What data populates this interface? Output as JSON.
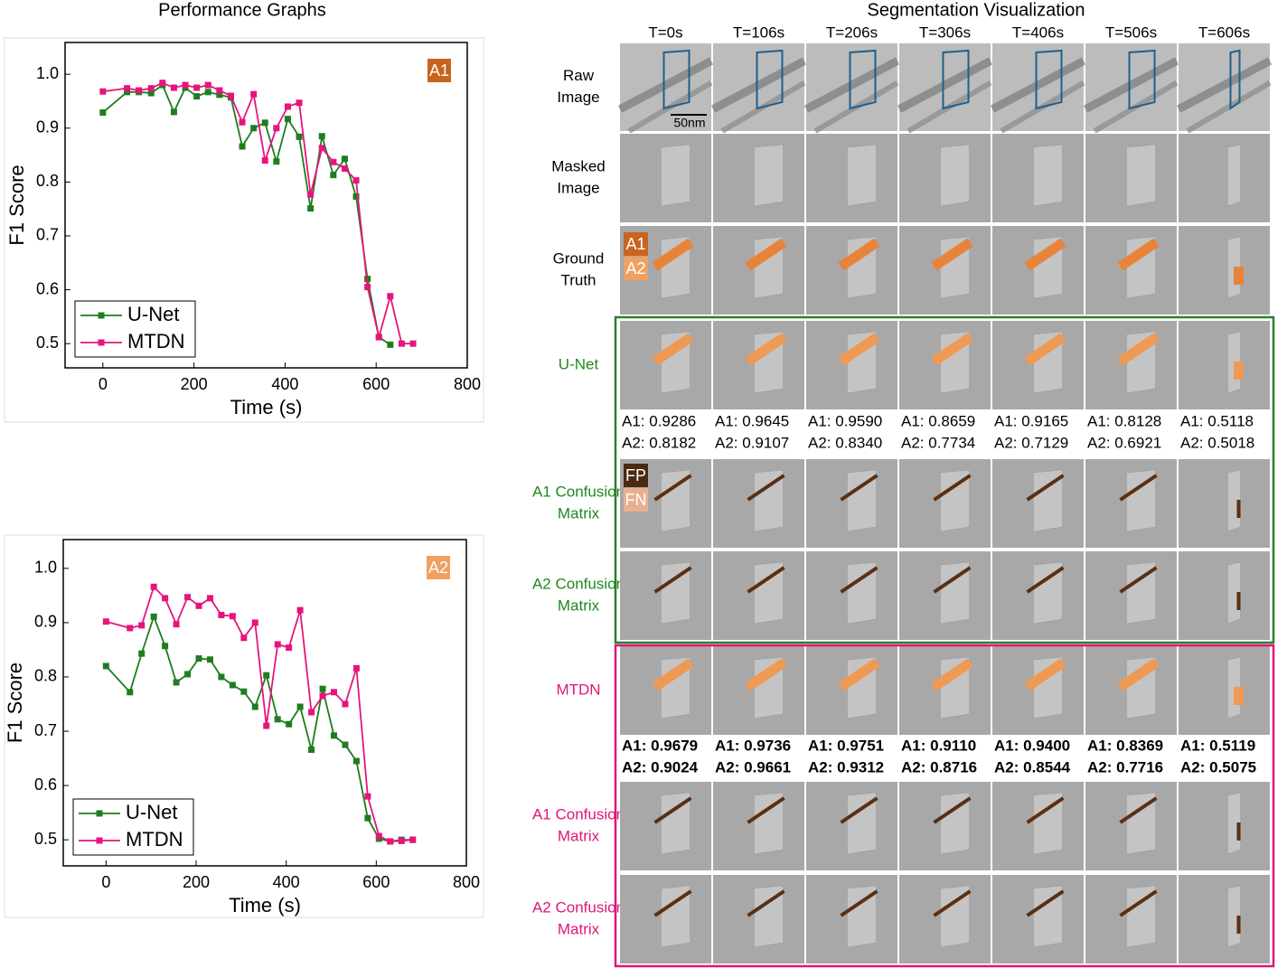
{
  "performance_title": "Performance Graphs",
  "chart_data": [
    {
      "type": "line",
      "badge": "A1",
      "badge_color": "#c8641e",
      "x_label": "Time (s)",
      "y_label": "F1 Score",
      "legend": "lower left",
      "x": [
        0,
        53,
        79,
        106,
        131,
        156,
        181,
        206,
        231,
        256,
        281,
        306,
        331,
        356,
        381,
        406,
        431,
        456,
        481,
        506,
        531,
        556,
        581,
        606,
        631,
        656,
        681
      ],
      "series": [
        {
          "name": "U-Net",
          "color": "#1e7d1e",
          "values": [
            0.929,
            0.967,
            0.967,
            0.965,
            0.98,
            0.93,
            0.975,
            0.959,
            0.967,
            0.962,
            0.957,
            0.866,
            0.9,
            0.91,
            0.838,
            0.917,
            0.884,
            0.751,
            0.885,
            0.813,
            0.843,
            0.773,
            0.62,
            0.512,
            0.498,
            null,
            null
          ]
        },
        {
          "name": "MTDN",
          "color": "#e8137c",
          "values": [
            0.968,
            0.974,
            0.97,
            0.974,
            0.984,
            0.975,
            0.98,
            0.975,
            0.98,
            0.97,
            0.96,
            0.911,
            0.963,
            0.84,
            0.9,
            0.94,
            0.947,
            0.777,
            0.863,
            0.837,
            0.825,
            0.803,
            0.605,
            0.512,
            0.588,
            0.5,
            0.5
          ]
        }
      ],
      "xlim": [
        -83,
        800
      ],
      "xticks": [
        0,
        200,
        400,
        600,
        800
      ],
      "ylim": [
        0.455,
        1.059
      ],
      "yticks": [
        0.5,
        0.6,
        0.7,
        0.8,
        0.9,
        {
          "value": 1,
          "label": "1.0"
        }
      ]
    },
    {
      "type": "line",
      "badge": "A2",
      "badge_color": "#f0a060",
      "x_label": "Time (s)",
      "y_label": "F1 Score",
      "legend": "lower left",
      "x": [
        0,
        53,
        79,
        106,
        131,
        156,
        181,
        206,
        231,
        256,
        281,
        306,
        331,
        356,
        381,
        406,
        431,
        456,
        481,
        506,
        531,
        556,
        581,
        606,
        631,
        656,
        681
      ],
      "series": [
        {
          "name": "U-Net",
          "color": "#1e7d1e",
          "values": [
            0.82,
            0.772,
            0.843,
            0.911,
            0.857,
            0.79,
            0.805,
            0.834,
            0.832,
            0.8,
            0.785,
            0.773,
            0.745,
            0.803,
            0.722,
            0.713,
            0.745,
            0.666,
            0.778,
            0.692,
            0.675,
            0.645,
            0.54,
            0.502,
            0.497,
            0.5,
            0.5
          ]
        },
        {
          "name": "MTDN",
          "color": "#e8137c",
          "values": [
            0.902,
            0.89,
            0.895,
            0.966,
            0.945,
            0.897,
            0.947,
            0.931,
            0.945,
            0.914,
            0.912,
            0.872,
            0.9,
            0.71,
            0.86,
            0.854,
            0.923,
            0.735,
            0.765,
            0.772,
            0.75,
            0.816,
            0.58,
            0.507,
            0.497,
            0.498,
            0.5
          ]
        }
      ],
      "xlim": [
        -95,
        800
      ],
      "xticks": [
        0,
        200,
        400,
        600,
        800
      ],
      "ylim": [
        0.452,
        1.053
      ],
      "yticks": [
        0.5,
        0.6,
        0.7,
        0.8,
        0.9,
        {
          "value": 1,
          "label": "1.0"
        }
      ]
    }
  ],
  "segmentation": {
    "title": "Segmentation Visualization",
    "columns": [
      "T=0s",
      "T=106s",
      "T=206s",
      "T=306s",
      "T=406s",
      "T=506s",
      "T=606s"
    ],
    "scale_bar": "50nm",
    "gt_labels": [
      "A1",
      "A2"
    ],
    "cm_labels": [
      "FP",
      "FN"
    ],
    "rows": [
      {
        "label": [
          "Raw",
          "Image"
        ],
        "color": "#000000"
      },
      {
        "label": [
          "Masked",
          "Image"
        ],
        "color": "#000000"
      },
      {
        "label": [
          "Ground",
          "Truth"
        ],
        "color": "#000000"
      },
      {
        "label": [
          "U-Net"
        ],
        "color": "#1e8a1e"
      },
      {
        "label": [
          "A1 Confusion",
          "Matrix"
        ],
        "color": "#1e8a1e"
      },
      {
        "label": [
          "A2 Confusion",
          "Matrix"
        ],
        "color": "#1e8a1e"
      },
      {
        "label": [
          "MTDN"
        ],
        "color": "#e0157a"
      },
      {
        "label": [
          "A1 Confusion",
          "Matrix"
        ],
        "color": "#e0157a"
      },
      {
        "label": [
          "A2 Confusion",
          "Matrix"
        ],
        "color": "#e0157a"
      }
    ],
    "unet_scores": [
      [
        "A1: 0.9286",
        "A1: 0.9645",
        "A1: 0.9590",
        "A1: 0.8659",
        "A1: 0.9165",
        "A1: 0.8128",
        "A1: 0.5118"
      ],
      [
        "A2: 0.8182",
        "A2: 0.9107",
        "A2: 0.8340",
        "A2: 0.7734",
        "A2: 0.7129",
        "A2: 0.6921",
        "A2: 0.5018"
      ]
    ],
    "mtdn_scores": [
      [
        "A1: 0.9679",
        "A1: 0.9736",
        "A1: 0.9751",
        "A1: 0.9110",
        "A1: 0.9400",
        "A1: 0.8369",
        "A1: 0.5119"
      ],
      [
        "A2: 0.9024",
        "A2: 0.9661",
        "A2: 0.9312",
        "A2: 0.8716",
        "A2: 0.8544",
        "A2: 0.7716",
        "A2: 0.5075"
      ]
    ]
  }
}
